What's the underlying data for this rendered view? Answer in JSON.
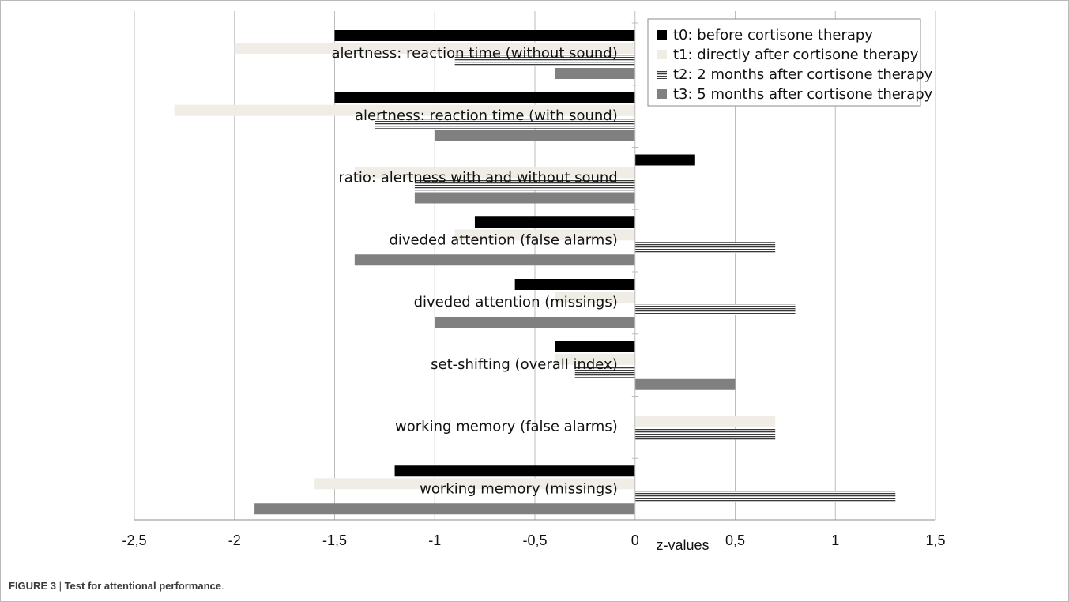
{
  "chart_data": {
    "type": "bar",
    "orientation": "horizontal",
    "xlabel": "z-values",
    "xlim": [
      -2.5,
      1.5
    ],
    "xticks": [
      "-2,5",
      "-2",
      "-1,5",
      "-1",
      "-0,5",
      "0",
      "0,5",
      "1",
      "1,5"
    ],
    "xtick_values": [
      -2.5,
      -2,
      -1.5,
      -1,
      -0.5,
      0,
      0.5,
      1,
      1.5
    ],
    "grid": "vertical",
    "legend_position": "top-right",
    "categories": [
      "alertness: reaction time (without sound)",
      "alertness: reaction time (with sound)",
      "ratio: alertness with and without sound",
      "diveded attention (false alarms)",
      "diveded attention (missings)",
      "set-shifting (overall index)",
      "working memory (false alarms)",
      "working memory (missings)"
    ],
    "series": [
      {
        "name": "t0: before cortisone therapy",
        "color": "#000000",
        "pattern": "solid",
        "values": [
          -1.5,
          -1.5,
          0.3,
          -0.8,
          -0.6,
          -0.4,
          0,
          -1.2
        ]
      },
      {
        "name": "t1: directly after cortisone therapy",
        "color": "#efede5",
        "pattern": "solid",
        "values": [
          -2.0,
          -2.3,
          -1.4,
          -0.9,
          -0.4,
          -0.4,
          0.7,
          -1.6
        ]
      },
      {
        "name": "t2: 2 months after cortisone therapy",
        "color": "#3a3a3a",
        "pattern": "lines",
        "values": [
          -0.9,
          -1.3,
          -1.1,
          0.7,
          0.8,
          -0.3,
          0.7,
          1.3
        ]
      },
      {
        "name": "t3: 5 months after cortisone therapy",
        "color": "#808080",
        "pattern": "solid",
        "values": [
          -0.4,
          -1.0,
          -1.1,
          -1.4,
          -1.0,
          0.5,
          0,
          -1.9
        ]
      }
    ]
  },
  "caption": {
    "figure_label": "FIGURE 3",
    "separator": " | ",
    "title": "Test for attentional performance",
    "end": "."
  }
}
